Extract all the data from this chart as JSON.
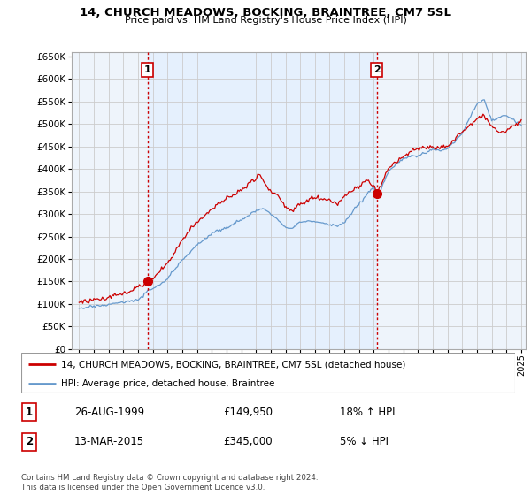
{
  "title": "14, CHURCH MEADOWS, BOCKING, BRAINTREE, CM7 5SL",
  "subtitle": "Price paid vs. HM Land Registry's House Price Index (HPI)",
  "ylim": [
    0,
    660000
  ],
  "yticks": [
    0,
    50000,
    100000,
    150000,
    200000,
    250000,
    300000,
    350000,
    400000,
    450000,
    500000,
    550000,
    600000,
    650000
  ],
  "sale1": {
    "date_num": 1999.65,
    "price": 149950,
    "label": "1",
    "date_str": "26-AUG-1999"
  },
  "sale2": {
    "date_num": 2015.19,
    "price": 345000,
    "label": "2",
    "date_str": "13-MAR-2015"
  },
  "legend_red": "14, CHURCH MEADOWS, BOCKING, BRAINTREE, CM7 5SL (detached house)",
  "legend_blue": "HPI: Average price, detached house, Braintree",
  "footer": "Contains HM Land Registry data © Crown copyright and database right 2024.\nThis data is licensed under the Open Government Licence v3.0.",
  "line_color_red": "#cc0000",
  "line_color_blue": "#6699cc",
  "fill_color": "#ddeeff",
  "vline_color": "#cc0000",
  "grid_color": "#cccccc",
  "bg_color": "#eef4fb",
  "table_rows": [
    {
      "num": "1",
      "date": "26-AUG-1999",
      "price": "£149,950",
      "hpi": "18% ↑ HPI"
    },
    {
      "num": "2",
      "date": "13-MAR-2015",
      "price": "£345,000",
      "hpi": "5% ↓ HPI"
    }
  ],
  "xmin": 1995,
  "xmax": 2025
}
